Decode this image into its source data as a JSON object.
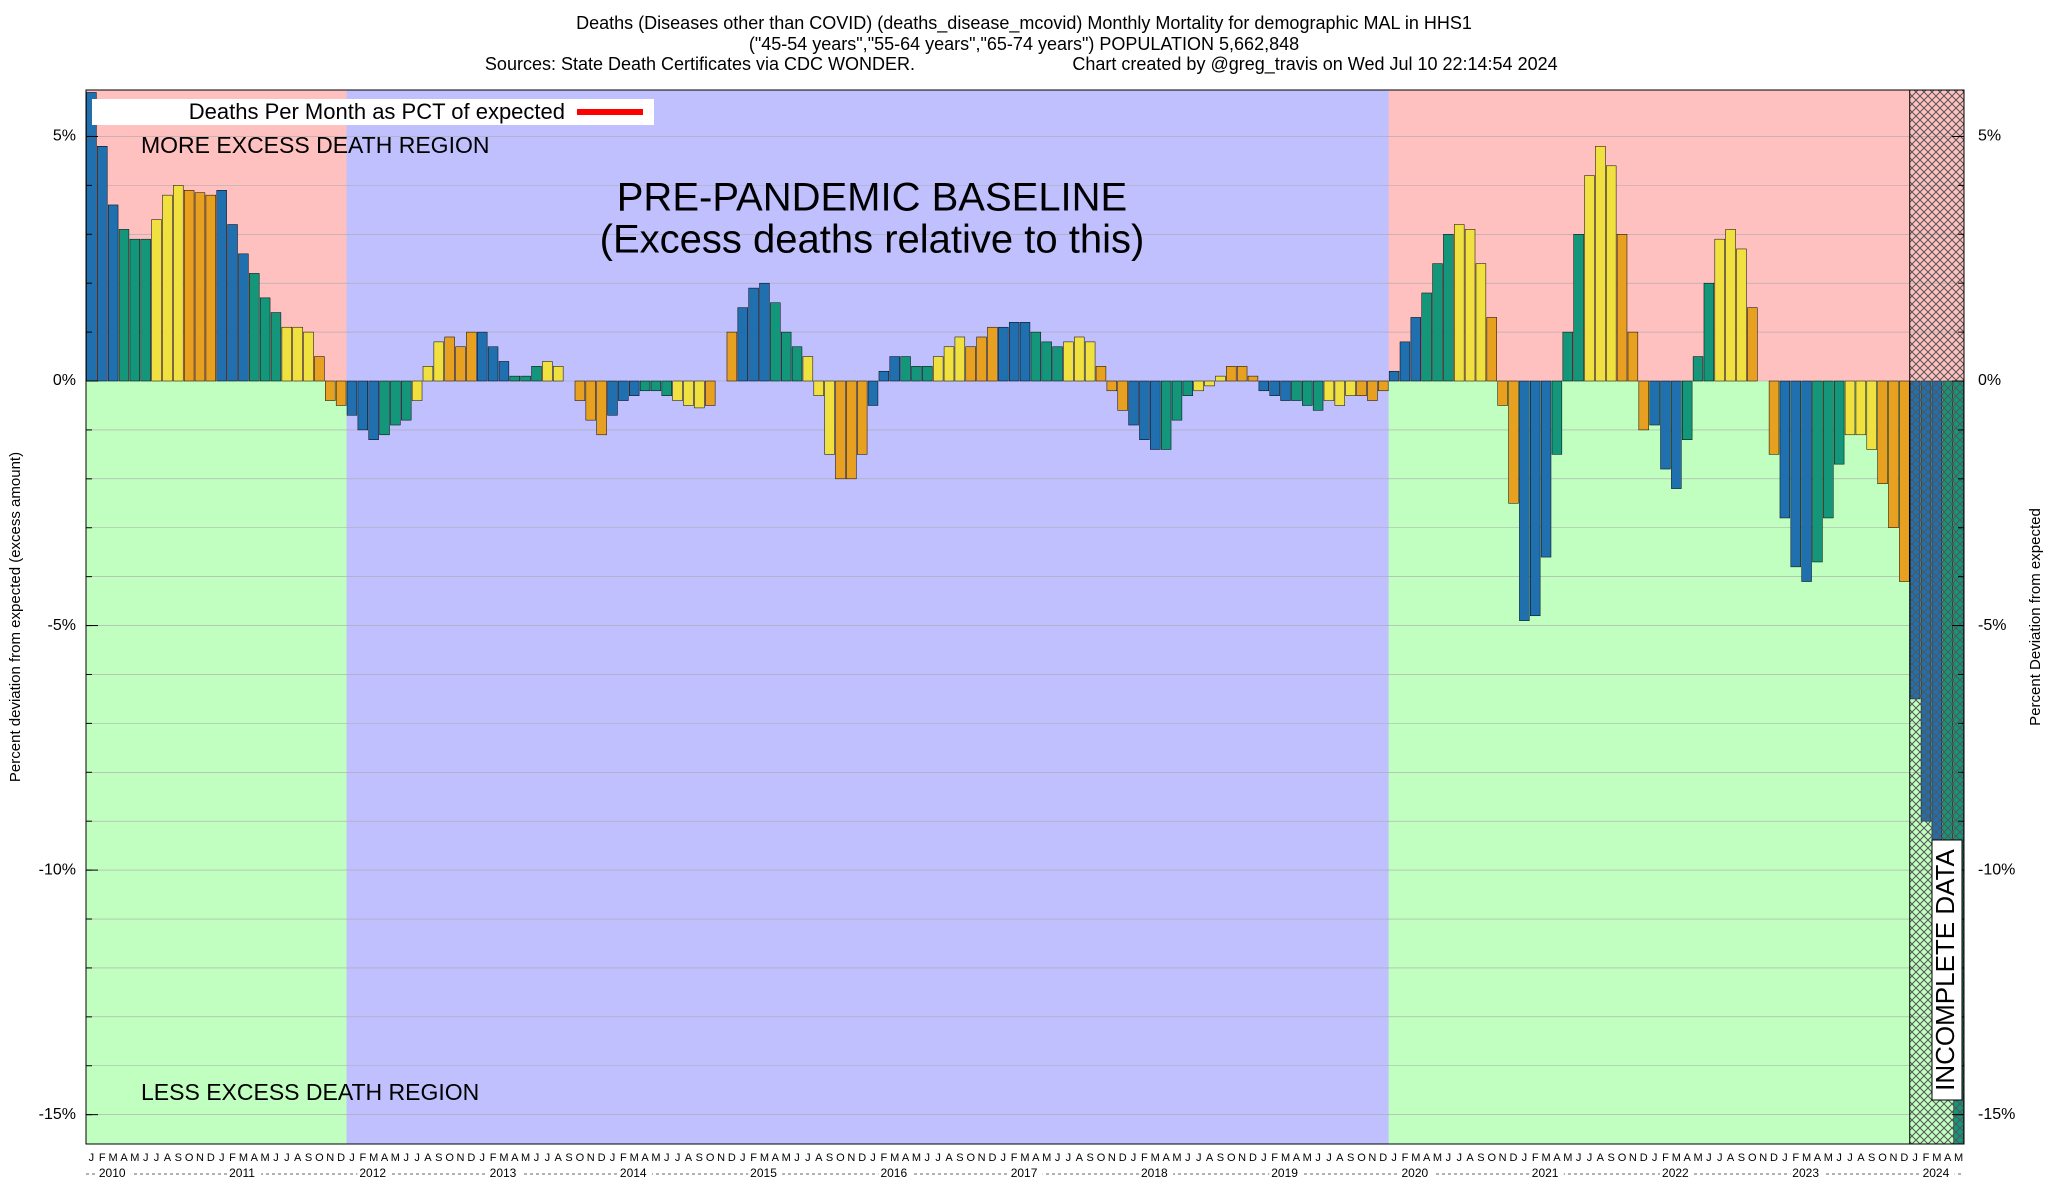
{
  "chart_data": {
    "type": "bar",
    "title": "Deaths (Diseases other than COVID) (deaths_disease_mcovid) Monthly Mortality for demographic MAL in HHS1",
    "subtitle": "(\"45-54 years\",\"55-64 years\",\"65-74 years\") POPULATION 5,662,848",
    "source": "Sources: State Death Certificates via CDC WONDER.",
    "credit": "Chart created by @greg_travis on Wed Jul 10 22:14:54 2024",
    "y_label": "Percent deviation from expected (excess amount)",
    "y2_label": "Percent Deviation from expected",
    "annotations": [
      "MORE EXCESS DEATH REGION",
      "LESS EXCESS DEATH REGION",
      "PRE-PANDEMIC BASELINE",
      "(Excess deaths relative to this)",
      "INCOMPLETE DATA"
    ],
    "categories": [
      "J",
      "F",
      "M",
      "A",
      "M",
      "J",
      "J",
      "A",
      "S",
      "O",
      "N",
      "D",
      "J",
      "F",
      "M",
      "A",
      "M",
      "J",
      "J",
      "A",
      "S",
      "O",
      "N",
      "D",
      "J",
      "F",
      "M",
      "A",
      "M",
      "J",
      "J",
      "A",
      "S",
      "O",
      "N",
      "D",
      "J",
      "F",
      "M",
      "A",
      "M",
      "J",
      "J",
      "A",
      "S",
      "O",
      "N",
      "D",
      "J",
      "F",
      "M",
      "A",
      "M",
      "J",
      "J",
      "A",
      "S",
      "O",
      "N",
      "D",
      "J",
      "F",
      "M",
      "A",
      "M",
      "J",
      "J",
      "A",
      "S",
      "O",
      "N",
      "D",
      "J",
      "F",
      "M",
      "A",
      "M",
      "J",
      "J",
      "A",
      "S",
      "O",
      "N",
      "D",
      "J",
      "F",
      "M",
      "A",
      "M",
      "J",
      "J",
      "A",
      "S",
      "O",
      "N",
      "D",
      "J",
      "F",
      "M",
      "A",
      "M",
      "J",
      "J",
      "A",
      "S",
      "O",
      "N",
      "D",
      "J",
      "F",
      "M",
      "A",
      "M",
      "J",
      "J",
      "A",
      "S",
      "O",
      "N",
      "D",
      "J",
      "F",
      "M",
      "A",
      "M",
      "J",
      "J",
      "A",
      "S",
      "O",
      "N",
      "D",
      "J",
      "F",
      "M",
      "A",
      "M",
      "J",
      "J",
      "A",
      "S",
      "O",
      "N",
      "D",
      "J",
      "F",
      "M",
      "A",
      "M",
      "J",
      "J",
      "A",
      "S",
      "O",
      "N",
      "D",
      "J",
      "F",
      "M",
      "A",
      "M",
      "J",
      "J",
      "A",
      "S",
      "O",
      "N",
      "D",
      "J",
      "F",
      "M",
      "A",
      "M"
    ],
    "years": [
      "2010",
      "2011",
      "2012",
      "2013",
      "2014",
      "2015",
      "2016",
      "2017",
      "2018",
      "2019",
      "2020",
      "2021",
      "2022",
      "2023",
      "2024"
    ],
    "bar_colors": [
      "#2070b0",
      "#14967a",
      "#f0e040",
      "#e8a020"
    ],
    "series": [
      {
        "name": "Deaths Per Month as PCT of expected",
        "color": "#ff0000",
        "values": [
          5.9,
          4.8,
          3.6,
          3.1,
          2.9,
          2.9,
          3.3,
          3.8,
          4.0,
          3.9,
          3.85,
          3.8,
          3.9,
          3.2,
          2.6,
          2.2,
          1.7,
          1.4,
          1.1,
          1.1,
          1.0,
          0.5,
          -0.4,
          -0.5,
          -0.7,
          -1.0,
          -1.2,
          -1.1,
          -0.9,
          -0.8,
          -0.4,
          0.3,
          0.8,
          0.9,
          0.7,
          1.0,
          1.0,
          0.7,
          0.4,
          0.1,
          0.1,
          0.3,
          0.4,
          0.3,
          0.0,
          -0.4,
          -0.8,
          -1.1,
          -0.7,
          -0.4,
          -0.3,
          -0.2,
          -0.2,
          -0.3,
          -0.4,
          -0.5,
          -0.55,
          -0.5,
          0.0,
          1.0,
          1.5,
          1.9,
          2.0,
          1.6,
          1.0,
          0.7,
          0.5,
          -0.3,
          -1.5,
          -2.0,
          -2.0,
          -1.5,
          -0.5,
          0.2,
          0.5,
          0.5,
          0.3,
          0.3,
          0.5,
          0.7,
          0.9,
          0.7,
          0.9,
          1.1,
          1.1,
          1.2,
          1.2,
          1.0,
          0.8,
          0.7,
          0.8,
          0.9,
          0.8,
          0.3,
          -0.2,
          -0.6,
          -0.9,
          -1.2,
          -1.4,
          -1.4,
          -0.8,
          -0.3,
          -0.2,
          -0.1,
          0.1,
          0.3,
          0.3,
          0.1,
          -0.2,
          -0.3,
          -0.4,
          -0.4,
          -0.5,
          -0.6,
          -0.4,
          -0.5,
          -0.3,
          -0.3,
          -0.4,
          -0.2,
          0.2,
          0.8,
          1.3,
          1.8,
          2.4,
          3.0,
          3.2,
          3.1,
          2.4,
          1.3,
          -0.5,
          -2.5,
          -4.9,
          -4.8,
          -3.6,
          -1.5,
          1.0,
          3.0,
          4.2,
          4.8,
          4.4,
          3.0,
          1.0,
          -1.0,
          -0.9,
          -1.8,
          -2.2,
          -1.2,
          0.5,
          2.0,
          2.9,
          3.1,
          2.7,
          1.5,
          0.0,
          -1.5,
          -2.8,
          -3.8,
          -4.1,
          -3.7,
          -2.8,
          -1.7,
          -1.1,
          -1.1,
          -1.4,
          -2.1,
          -3.0,
          -4.1,
          -6.5,
          -9.0,
          -12.0,
          -14.5,
          -15.6
        ]
      }
    ],
    "ylim": [
      -15.6,
      5.95
    ],
    "yticks": [
      {
        "value": -15,
        "label": "-15%"
      },
      {
        "value": -10,
        "label": "-10%"
      },
      {
        "value": -5,
        "label": "-5%"
      },
      {
        "value": 0,
        "label": "0%"
      },
      {
        "value": 5,
        "label": "5%"
      }
    ],
    "y2lim": [
      -15.6,
      5.95
    ],
    "y2ticks": [
      {
        "value": -15,
        "label": "-15%"
      },
      {
        "value": -10,
        "label": "-10%"
      },
      {
        "value": -5,
        "label": "-5%"
      },
      {
        "value": 0,
        "label": "0%"
      },
      {
        "value": 5,
        "label": "5%"
      }
    ],
    "minor_yticks": [
      -15,
      -14,
      -13,
      -12,
      -11,
      -10,
      -9,
      -8,
      -7,
      -6,
      -5,
      -4,
      -3,
      -2,
      -1,
      0,
      1,
      2,
      3,
      4,
      5
    ],
    "grid": true,
    "legend": "top-left"
  }
}
